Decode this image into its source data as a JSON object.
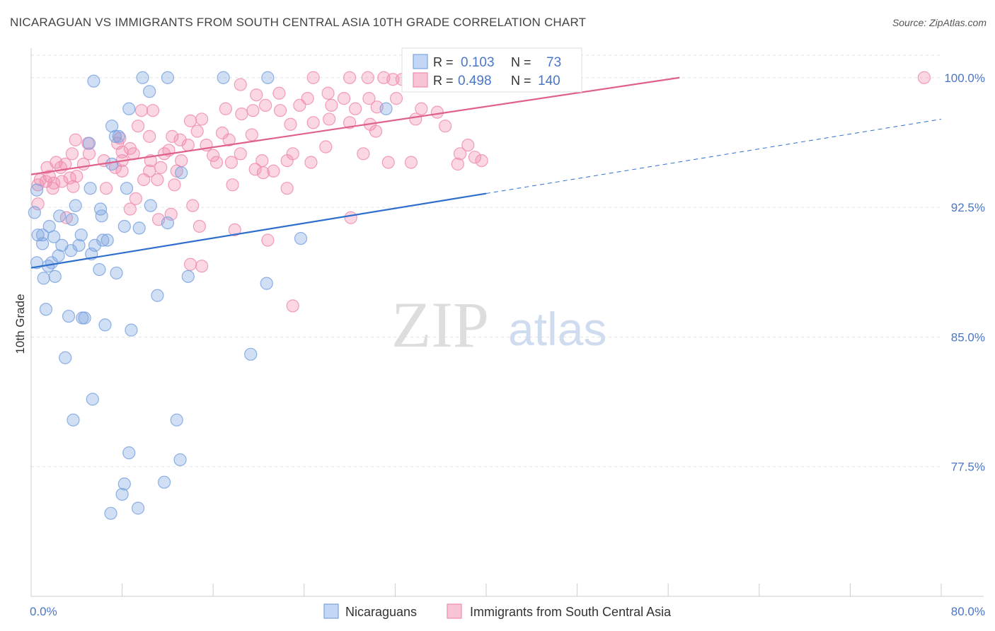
{
  "header": {
    "title": "NICARAGUAN VS IMMIGRANTS FROM SOUTH CENTRAL ASIA 10TH GRADE CORRELATION CHART",
    "source": "Source: ZipAtlas.com"
  },
  "watermark": {
    "zip": "ZIP",
    "atlas": "atlas"
  },
  "legend_box": {
    "rows": [
      {
        "r_label": "R =",
        "r_value": "0.103",
        "n_label": "N =",
        "n_value": "73",
        "color": "#7aa3e0"
      },
      {
        "r_label": "R =",
        "r_value": "0.498",
        "n_label": "N =",
        "n_value": "140",
        "color": "#f08cb0"
      }
    ]
  },
  "bottom_legend": {
    "series1": "Nicaraguans",
    "series2": "Immigrants from South Central Asia"
  },
  "chart_data": {
    "type": "scatter",
    "title": "NICARAGUAN VS IMMIGRANTS FROM SOUTH CENTRAL ASIA 10TH GRADE CORRELATION CHART",
    "xlabel": "",
    "ylabel": "10th Grade",
    "xlim": [
      0,
      80
    ],
    "ylim": [
      70.0,
      101.3
    ],
    "x_tick_labels": [
      "0.0%",
      "80.0%"
    ],
    "y_ticks": [
      77.5,
      85.0,
      92.5,
      100.0
    ],
    "y_tick_labels": [
      "77.5%",
      "85.0%",
      "92.5%",
      "100.0%"
    ],
    "colors": {
      "nicaraguans": "#7aa3e0",
      "immigrants": "#f08cb0",
      "trend_blue": "#2f6fcc",
      "trend_pink": "#e0608c"
    },
    "trendlines": [
      {
        "series": "Nicaraguans",
        "x0": 0,
        "y0": 89.0,
        "x1": 40,
        "y1": 93.3,
        "dash_to_x": 80,
        "dash_to_y": 97.6
      },
      {
        "series": "Immigrants from South Central Asia",
        "x0": 0,
        "y0": 94.4,
        "x1": 57,
        "y1": 100.0
      }
    ],
    "series": [
      {
        "name": "Nicaraguans",
        "points": [
          [
            5.5,
            99.8
          ],
          [
            9.8,
            100
          ],
          [
            12,
            100
          ],
          [
            16.9,
            100
          ],
          [
            20.8,
            100
          ],
          [
            10.4,
            99.2
          ],
          [
            8.6,
            98.2
          ],
          [
            7.1,
            97.2
          ],
          [
            7.4,
            96.6
          ],
          [
            7.7,
            96.6
          ],
          [
            5.1,
            96.2
          ],
          [
            7.1,
            95.0
          ],
          [
            13.2,
            94.5
          ],
          [
            8.4,
            93.6
          ],
          [
            5.2,
            93.6
          ],
          [
            0.5,
            93.5
          ],
          [
            3.9,
            92.6
          ],
          [
            6.1,
            92.4
          ],
          [
            10.5,
            92.6
          ],
          [
            2.5,
            92.0
          ],
          [
            6.2,
            92.0
          ],
          [
            0.3,
            92.2
          ],
          [
            3.6,
            91.8
          ],
          [
            1.6,
            91.4
          ],
          [
            8.2,
            91.4
          ],
          [
            9.5,
            91.3
          ],
          [
            12.0,
            91.6
          ],
          [
            1.0,
            90.9
          ],
          [
            0.6,
            90.9
          ],
          [
            2.0,
            90.8
          ],
          [
            4.4,
            90.9
          ],
          [
            6.3,
            90.6
          ],
          [
            6.7,
            90.6
          ],
          [
            1.0,
            90.4
          ],
          [
            2.7,
            90.3
          ],
          [
            4.2,
            90.3
          ],
          [
            5.6,
            90.3
          ],
          [
            3.5,
            90.0
          ],
          [
            2.4,
            89.7
          ],
          [
            5.3,
            89.8
          ],
          [
            23.7,
            90.7
          ],
          [
            0.5,
            89.3
          ],
          [
            1.8,
            89.3
          ],
          [
            1.5,
            89.1
          ],
          [
            6.0,
            88.9
          ],
          [
            7.5,
            88.7
          ],
          [
            1.1,
            88.4
          ],
          [
            2.1,
            88.5
          ],
          [
            13.8,
            88.5
          ],
          [
            20.7,
            88.1
          ],
          [
            11.1,
            87.4
          ],
          [
            1.3,
            86.6
          ],
          [
            3.3,
            86.2
          ],
          [
            4.5,
            86.1
          ],
          [
            4.7,
            86.1
          ],
          [
            6.5,
            85.7
          ],
          [
            8.8,
            85.4
          ],
          [
            19.3,
            84.0
          ],
          [
            3.0,
            83.8
          ],
          [
            5.4,
            81.4
          ],
          [
            3.7,
            80.2
          ],
          [
            12.8,
            80.2
          ],
          [
            8.6,
            78.3
          ],
          [
            13.1,
            77.9
          ],
          [
            8.2,
            76.5
          ],
          [
            11.7,
            76.6
          ],
          [
            8.0,
            75.9
          ],
          [
            9.4,
            75.1
          ],
          [
            7.0,
            74.8
          ],
          [
            31.2,
            98.2
          ]
        ]
      },
      {
        "name": "Immigrants from South Central Asia",
        "points": [
          [
            24.8,
            100
          ],
          [
            28.0,
            100
          ],
          [
            29.6,
            100
          ],
          [
            31.0,
            100
          ],
          [
            31.8,
            99.9
          ],
          [
            32.6,
            99.9
          ],
          [
            34.0,
            99.7
          ],
          [
            34.5,
            100
          ],
          [
            39.0,
            100
          ],
          [
            78.5,
            100
          ],
          [
            18.4,
            99.6
          ],
          [
            19.8,
            99.0
          ],
          [
            21.8,
            99.1
          ],
          [
            24.3,
            98.8
          ],
          [
            26.1,
            99.1
          ],
          [
            27.5,
            98.8
          ],
          [
            29.7,
            98.8
          ],
          [
            20.6,
            98.4
          ],
          [
            19.5,
            98.1
          ],
          [
            17.1,
            98.2
          ],
          [
            21.9,
            98.1
          ],
          [
            23.6,
            98.4
          ],
          [
            26.4,
            98.4
          ],
          [
            28.5,
            98.2
          ],
          [
            30.4,
            98.3
          ],
          [
            32.1,
            98.8
          ],
          [
            34.3,
            98.2
          ],
          [
            35.7,
            98.0
          ],
          [
            9.7,
            98.1
          ],
          [
            10.7,
            98.1
          ],
          [
            15.0,
            97.6
          ],
          [
            14.0,
            97.5
          ],
          [
            18.5,
            97.9
          ],
          [
            22.8,
            97.3
          ],
          [
            24.8,
            97.4
          ],
          [
            26.2,
            97.6
          ],
          [
            29.8,
            97.3
          ],
          [
            33.8,
            97.6
          ],
          [
            36.4,
            97.2
          ],
          [
            9.4,
            97.2
          ],
          [
            14.6,
            96.9
          ],
          [
            16.8,
            96.8
          ],
          [
            19.4,
            96.7
          ],
          [
            17.4,
            96.4
          ],
          [
            12.4,
            96.6
          ],
          [
            7.8,
            96.5
          ],
          [
            10.4,
            96.6
          ],
          [
            13.1,
            96.4
          ],
          [
            3.9,
            96.4
          ],
          [
            5.0,
            96.2
          ],
          [
            7.6,
            96.2
          ],
          [
            13.8,
            96.1
          ],
          [
            15.4,
            96.1
          ],
          [
            12.1,
            95.8
          ],
          [
            8.0,
            95.7
          ],
          [
            3.6,
            95.6
          ],
          [
            5.1,
            95.6
          ],
          [
            9.0,
            95.6
          ],
          [
            11.7,
            95.6
          ],
          [
            18.4,
            95.6
          ],
          [
            23.0,
            95.6
          ],
          [
            25.9,
            96.0
          ],
          [
            29.2,
            95.6
          ],
          [
            37.7,
            95.6
          ],
          [
            39.0,
            95.4
          ],
          [
            2.2,
            95.1
          ],
          [
            3.0,
            95.0
          ],
          [
            4.6,
            95.0
          ],
          [
            6.4,
            95.2
          ],
          [
            8.0,
            95.2
          ],
          [
            10.5,
            95.2
          ],
          [
            13.2,
            95.2
          ],
          [
            17.6,
            95.1
          ],
          [
            20.3,
            95.2
          ],
          [
            22.5,
            95.2
          ],
          [
            24.6,
            95.1
          ],
          [
            31.4,
            95.1
          ],
          [
            33.4,
            95.1
          ],
          [
            37.5,
            95.0
          ],
          [
            1.4,
            94.8
          ],
          [
            2.6,
            94.8
          ],
          [
            7.4,
            94.8
          ],
          [
            8.0,
            94.6
          ],
          [
            10.4,
            94.6
          ],
          [
            11.4,
            94.8
          ],
          [
            12.8,
            94.6
          ],
          [
            16.3,
            95.1
          ],
          [
            20.4,
            94.5
          ],
          [
            1.6,
            94.3
          ],
          [
            3.4,
            94.2
          ],
          [
            4.0,
            94.3
          ],
          [
            0.8,
            94.1
          ],
          [
            1.3,
            94.0
          ],
          [
            2.7,
            94.0
          ],
          [
            9.9,
            94.1
          ],
          [
            11.1,
            94.1
          ],
          [
            12.6,
            93.8
          ],
          [
            0.6,
            93.8
          ],
          [
            1.9,
            93.6
          ],
          [
            3.7,
            93.7
          ],
          [
            6.6,
            93.6
          ],
          [
            17.7,
            93.8
          ],
          [
            22.5,
            93.6
          ],
          [
            0.6,
            92.7
          ],
          [
            8.7,
            92.4
          ],
          [
            12.3,
            92.1
          ],
          [
            14.2,
            92.6
          ],
          [
            28.1,
            91.9
          ],
          [
            3.1,
            91.9
          ],
          [
            11.2,
            91.8
          ],
          [
            14.8,
            91.4
          ],
          [
            17.9,
            91.2
          ],
          [
            20.8,
            90.6
          ],
          [
            14.0,
            89.2
          ],
          [
            15.0,
            89.1
          ],
          [
            23.0,
            86.8
          ],
          [
            28.0,
            97.4
          ],
          [
            30.3,
            96.9
          ],
          [
            38.4,
            96.1
          ],
          [
            39.6,
            95.2
          ],
          [
            8.7,
            95.9
          ],
          [
            16.0,
            95.5
          ],
          [
            19.7,
            94.7
          ],
          [
            21.3,
            94.6
          ],
          [
            2.0,
            93.9
          ],
          [
            9.2,
            93.0
          ]
        ]
      }
    ]
  }
}
